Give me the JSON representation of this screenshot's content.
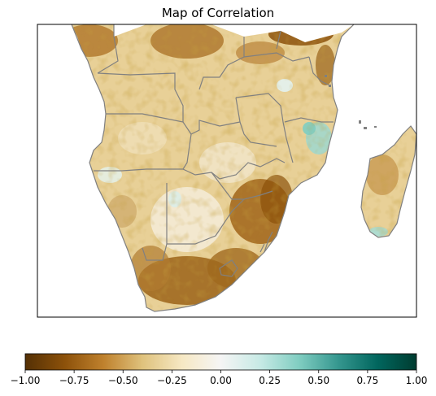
{
  "title": "Map of Correlation",
  "colorbar": {
    "colormap": "BrBG",
    "vmin": -1.0,
    "vmax": 1.0,
    "ticks": [
      -1.0,
      -0.75,
      -0.5,
      -0.25,
      0.0,
      0.25,
      0.5,
      0.75,
      1.0
    ],
    "tick_labels": [
      "−1.00",
      "−0.75",
      "−0.50",
      "−0.25",
      "0.00",
      "0.25",
      "0.50",
      "0.75",
      "1.00"
    ],
    "stops": [
      "#543005",
      "#8c510a",
      "#bf812d",
      "#dfc27d",
      "#f6e8c3",
      "#f5f5f5",
      "#c7eae5",
      "#80cdc1",
      "#35978f",
      "#01665e",
      "#003c30"
    ]
  },
  "map": {
    "region": "Southern Africa",
    "land_color_base": "#e6cc8f",
    "border_color": "#808080",
    "ocean_color": "#ffffff"
  }
}
